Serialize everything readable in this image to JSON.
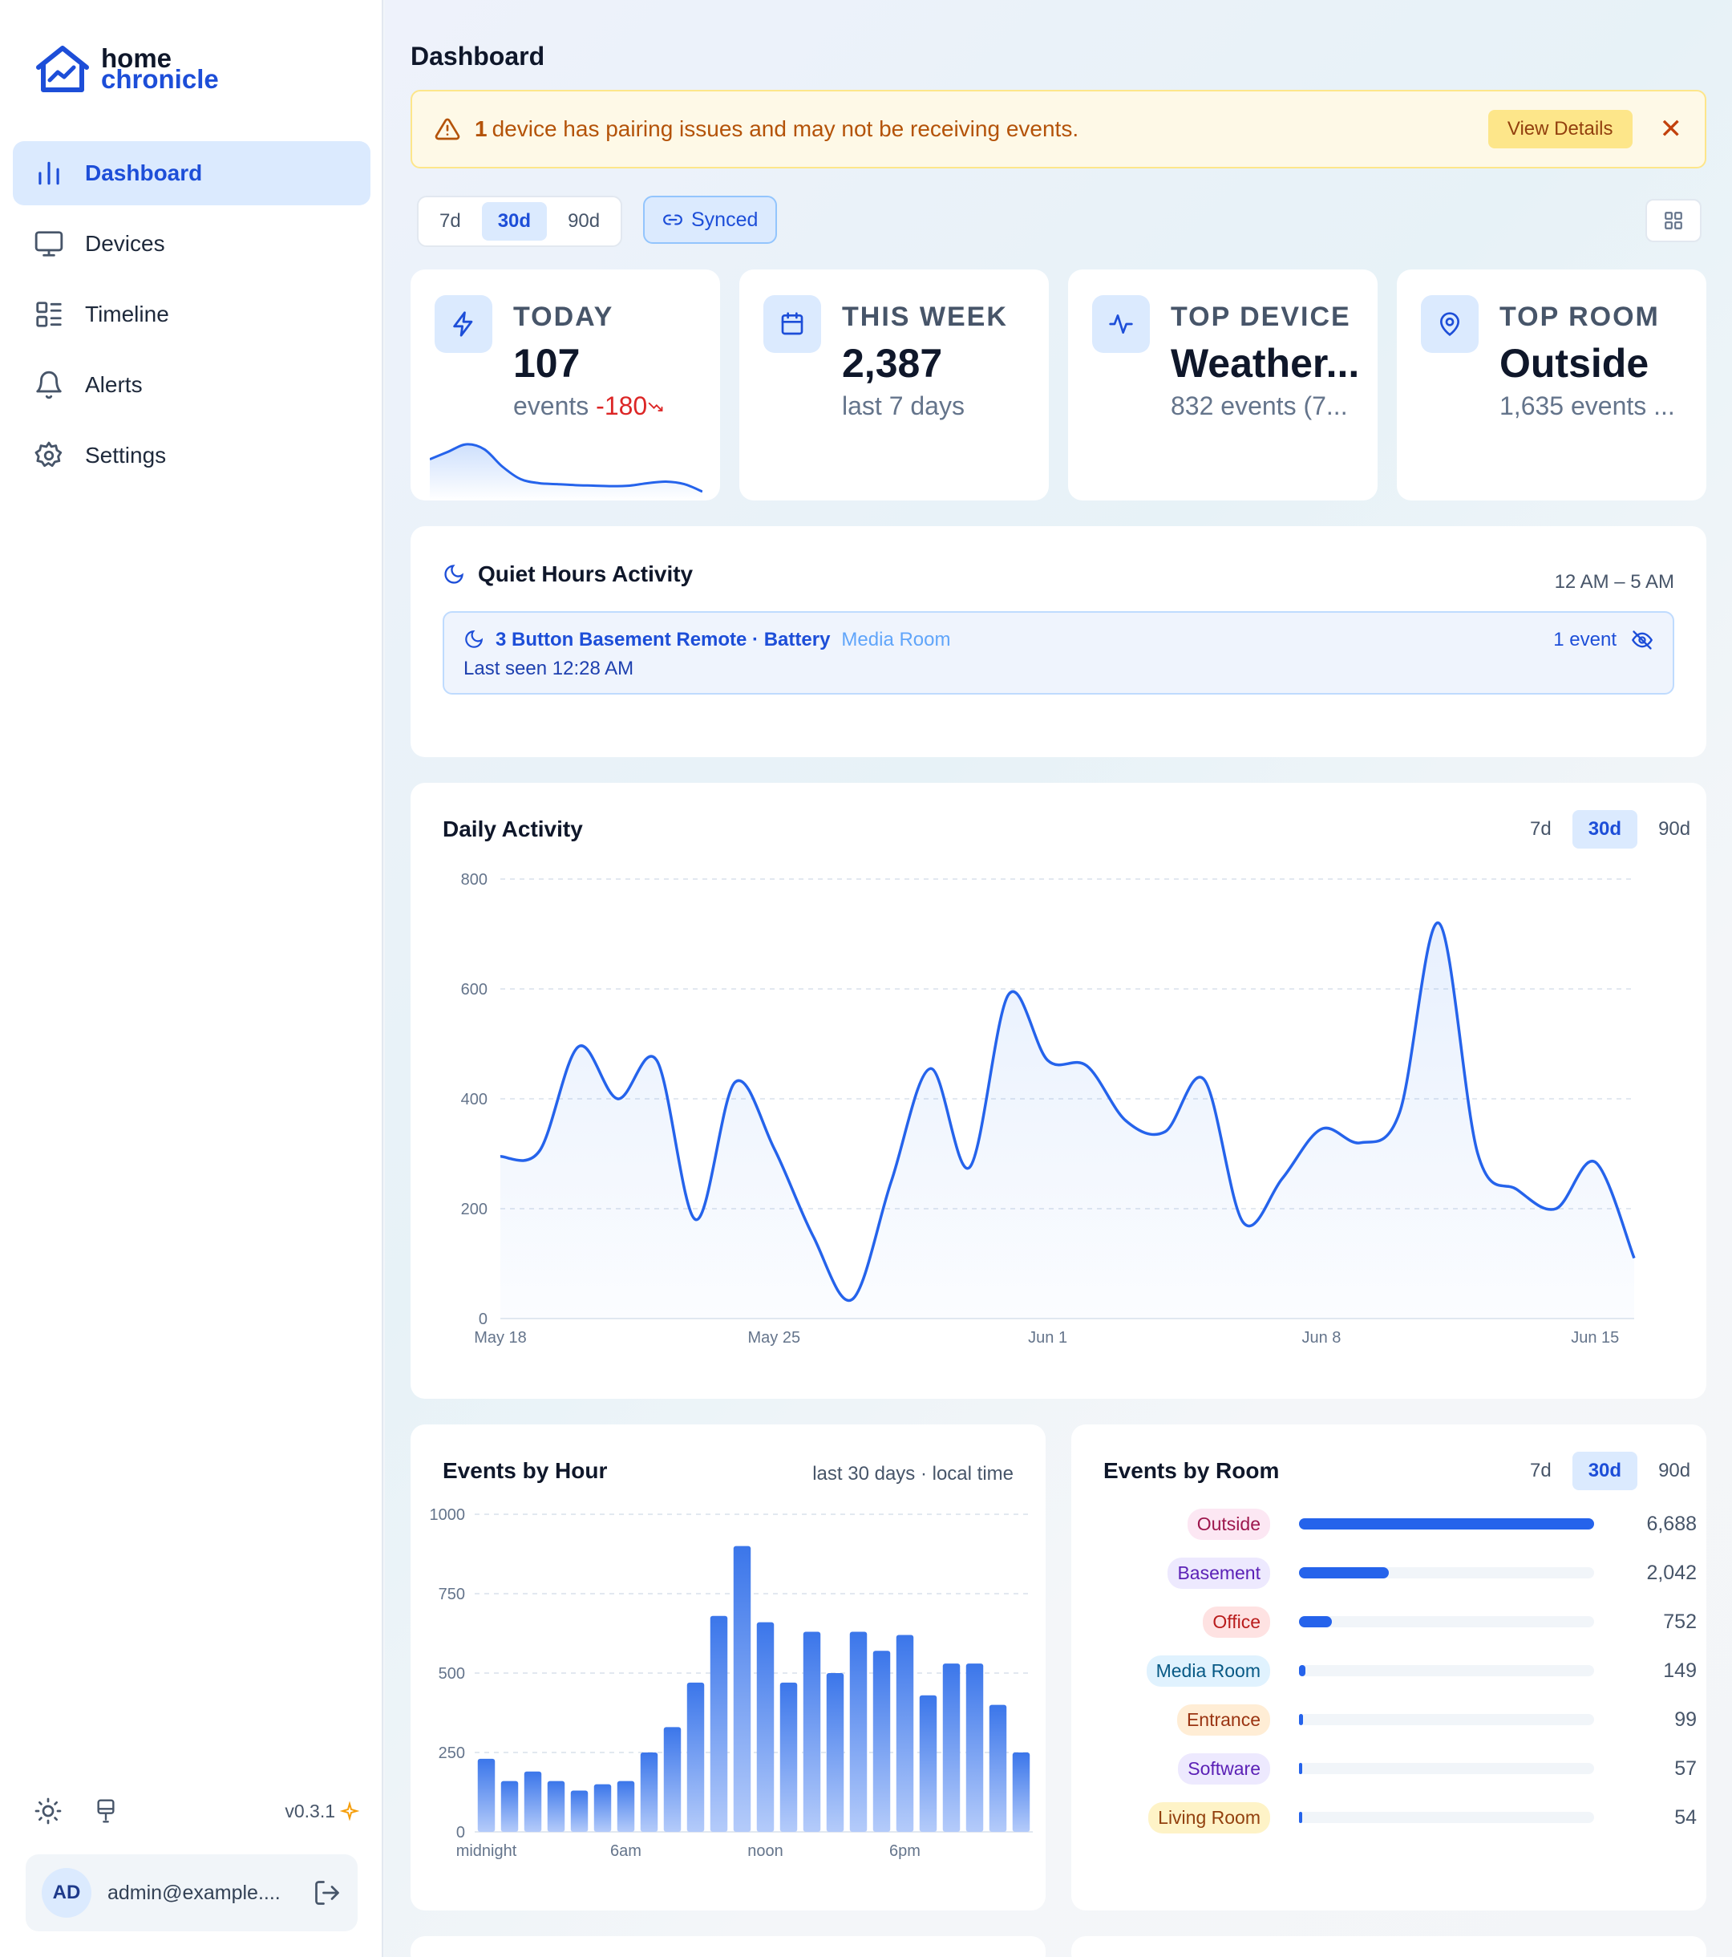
{
  "app": {
    "logo_line1": "home",
    "logo_line2": "chronicle"
  },
  "sidebar": {
    "items": [
      {
        "label": "Dashboard",
        "icon": "bar-chart-icon",
        "active": true
      },
      {
        "label": "Devices",
        "icon": "monitor-icon"
      },
      {
        "label": "Timeline",
        "icon": "list-icon"
      },
      {
        "label": "Alerts",
        "icon": "bell-icon"
      },
      {
        "label": "Settings",
        "icon": "gear-icon"
      }
    ],
    "version": "v0.3.1",
    "user": {
      "initials": "AD",
      "email": "admin@example...."
    }
  },
  "header": {
    "title": "Dashboard"
  },
  "banner": {
    "count": "1",
    "message": "device has pairing issues and may not be receiving events.",
    "button": "View Details"
  },
  "range": {
    "options": [
      "7d",
      "30d",
      "90d"
    ],
    "selected": "30d",
    "synced": "Synced"
  },
  "stats": [
    {
      "label": "TODAY",
      "value": "107",
      "sub": "events",
      "delta": "-180",
      "icon": "bolt-icon",
      "sparkline": [
        0.7,
        0.85,
        1.0,
        0.9,
        0.55,
        0.3,
        0.22,
        0.2,
        0.18,
        0.17,
        0.16,
        0.17,
        0.22,
        0.25,
        0.2,
        0.05
      ]
    },
    {
      "label": "THIS WEEK",
      "value": "2,387",
      "sub": "last 7 days",
      "icon": "calendar-icon"
    },
    {
      "label": "TOP DEVICE",
      "value": "Weather...",
      "sub": "832 events (7...",
      "icon": "activity-icon"
    },
    {
      "label": "TOP ROOM",
      "value": "Outside",
      "sub": "1,635 events ...",
      "icon": "map-pin-icon"
    }
  ],
  "quiet_hours": {
    "title": "Quiet Hours Activity",
    "range": "12 AM – 5 AM",
    "device": "3 Button Basement Remote · Battery",
    "room": "Media Room",
    "last_seen": "Last seen 12:28 AM",
    "count": "1 event"
  },
  "daily": {
    "title": "Daily Activity",
    "options": [
      "7d",
      "30d",
      "90d"
    ],
    "selected": "30d"
  },
  "by_hour": {
    "title": "Events by Hour",
    "note": "last 30 days · local time"
  },
  "by_room": {
    "title": "Events by Room",
    "options": [
      "7d",
      "30d",
      "90d"
    ],
    "selected": "30d",
    "rows": [
      {
        "room": "Outside",
        "value": "6,688",
        "num": 6688,
        "bg": "#fce7f3",
        "fg": "#9d174d"
      },
      {
        "room": "Basement",
        "value": "2,042",
        "num": 2042,
        "bg": "#ede9fe",
        "fg": "#5b21b6"
      },
      {
        "room": "Office",
        "value": "752",
        "num": 752,
        "bg": "#fee2e2",
        "fg": "#b91c1c"
      },
      {
        "room": "Media Room",
        "value": "149",
        "num": 149,
        "bg": "#e0f2fe",
        "fg": "#075985"
      },
      {
        "room": "Entrance",
        "value": "99",
        "num": 99,
        "bg": "#ffedd5",
        "fg": "#9a3412"
      },
      {
        "room": "Software",
        "value": "57",
        "num": 57,
        "bg": "#ede9fe",
        "fg": "#5b21b6"
      },
      {
        "room": "Living Room",
        "value": "54",
        "num": 54,
        "bg": "#fef3c7",
        "fg": "#92400e"
      }
    ]
  },
  "chart_data": [
    {
      "type": "area",
      "title": "Daily Activity",
      "ylim": [
        0,
        800
      ],
      "yticks": [
        0,
        200,
        400,
        600,
        800
      ],
      "xtick_labels": [
        "May 18",
        "May 25",
        "Jun 1",
        "Jun 8",
        "Jun 15"
      ],
      "x": [
        "May 18",
        "May 19",
        "May 20",
        "May 21",
        "May 22",
        "May 23",
        "May 24",
        "May 25",
        "May 26",
        "May 27",
        "May 28",
        "May 29",
        "May 30",
        "May 31",
        "Jun 1",
        "Jun 2",
        "Jun 3",
        "Jun 4",
        "Jun 5",
        "Jun 6",
        "Jun 7",
        "Jun 8",
        "Jun 9",
        "Jun 10",
        "Jun 11",
        "Jun 12",
        "Jun 13",
        "Jun 14",
        "Jun 15",
        "Jun 16"
      ],
      "values": [
        295,
        305,
        495,
        400,
        470,
        180,
        430,
        310,
        150,
        35,
        250,
        455,
        275,
        590,
        470,
        460,
        360,
        340,
        435,
        175,
        255,
        345,
        320,
        375,
        720,
        300,
        235,
        200,
        285,
        110
      ]
    },
    {
      "type": "bar",
      "title": "Events by Hour",
      "ylim": [
        0,
        1000
      ],
      "yticks": [
        0,
        250,
        500,
        750,
        1000
      ],
      "xtick_labels": [
        "midnight",
        "6am",
        "noon",
        "6pm"
      ],
      "categories": [
        "0",
        "1",
        "2",
        "3",
        "4",
        "5",
        "6",
        "7",
        "8",
        "9",
        "10",
        "11",
        "12",
        "13",
        "14",
        "15",
        "16",
        "17",
        "18",
        "19",
        "20",
        "21",
        "22",
        "23"
      ],
      "values": [
        230,
        160,
        190,
        160,
        130,
        150,
        160,
        250,
        330,
        470,
        680,
        900,
        660,
        470,
        630,
        500,
        630,
        570,
        620,
        430,
        530,
        530,
        400,
        250
      ]
    },
    {
      "type": "bar",
      "title": "Events by Room",
      "orientation": "horizontal",
      "categories": [
        "Outside",
        "Basement",
        "Office",
        "Media Room",
        "Entrance",
        "Software",
        "Living Room"
      ],
      "values": [
        6688,
        2042,
        752,
        149,
        99,
        57,
        54
      ]
    }
  ]
}
